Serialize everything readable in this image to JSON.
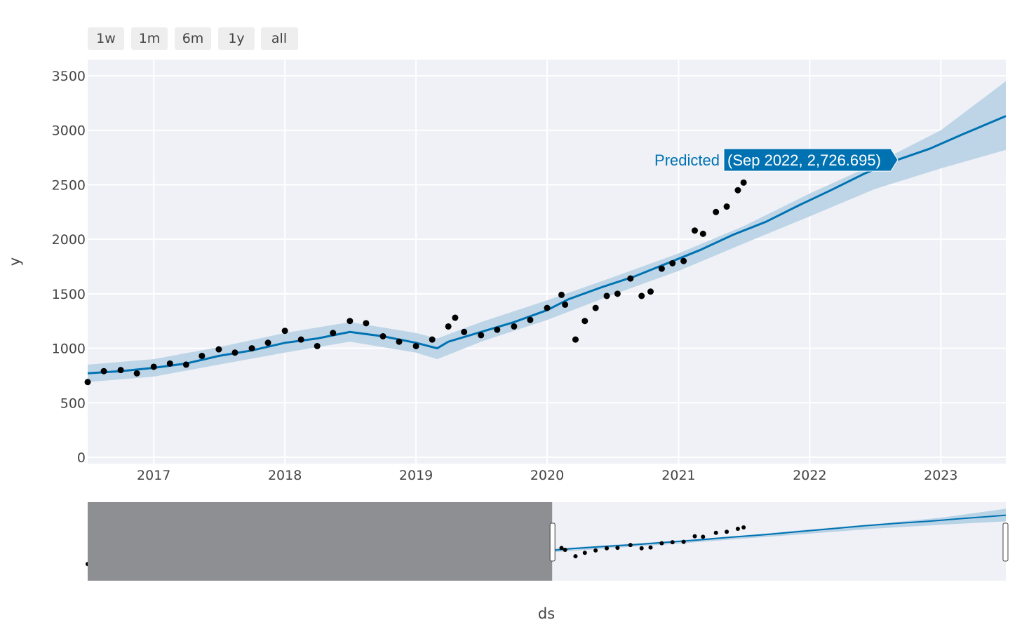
{
  "range_selector": {
    "buttons": [
      {
        "label": "1w"
      },
      {
        "label": "1m"
      },
      {
        "label": "6m"
      },
      {
        "label": "1y"
      },
      {
        "label": "all"
      }
    ]
  },
  "hover": {
    "series_label": "Predicted",
    "value_label": "(Sep 2022, 2,726.695)"
  },
  "colors": {
    "plot_bg": "#eff1f6",
    "grid": "#ffffff",
    "forecast_line": "#0072b2",
    "uncertainty_band": "#b9d3e6",
    "observed_points": "#000000",
    "rangeslider_mask": "#8e8f92",
    "tooltip_bg": "#0072b2"
  },
  "chart_data": {
    "type": "line",
    "xlabel": "ds",
    "ylabel": "y",
    "x_tick_labels": [
      "2017",
      "2018",
      "2019",
      "2020",
      "2021",
      "2022",
      "2023"
    ],
    "y_tick_labels": [
      "0",
      "500",
      "1000",
      "1500",
      "2000",
      "2500",
      "3000",
      "3500"
    ],
    "xlim": [
      "2016-07-01",
      "2023-07-01"
    ],
    "ylim": [
      0,
      3500
    ],
    "grid": true,
    "range_slider": {
      "visible": true,
      "selected_start": "2016-07-01",
      "selected_end": "2023-07-01",
      "masked_before": "2020-01-15"
    },
    "series": [
      {
        "name": "Predicted",
        "kind": "line",
        "x": [
          "2016-07-01",
          "2016-10-01",
          "2017-01-01",
          "2017-04-01",
          "2017-07-01",
          "2017-10-01",
          "2018-01-01",
          "2018-04-01",
          "2018-07-01",
          "2018-10-01",
          "2019-01-01",
          "2019-03-01",
          "2019-04-01",
          "2019-07-01",
          "2019-10-01",
          "2020-01-01",
          "2020-03-01",
          "2020-06-01",
          "2020-09-01",
          "2020-12-01",
          "2021-03-01",
          "2021-06-01",
          "2021-09-01",
          "2021-12-01",
          "2022-03-01",
          "2022-06-01",
          "2022-09-01",
          "2022-12-01",
          "2023-03-01",
          "2023-07-01"
        ],
        "y": [
          770,
          790,
          820,
          860,
          930,
          980,
          1050,
          1090,
          1150,
          1110,
          1050,
          1000,
          1060,
          1150,
          1240,
          1350,
          1450,
          1560,
          1660,
          1780,
          1900,
          2040,
          2160,
          2310,
          2450,
          2600,
          2726.695,
          2830,
          2960,
          3130
        ]
      },
      {
        "name": "Uncertainty interval",
        "kind": "band",
        "x": [
          "2016-07-01",
          "2017-01-01",
          "2017-07-01",
          "2018-01-01",
          "2018-07-01",
          "2019-01-01",
          "2019-03-01",
          "2019-07-01",
          "2020-01-01",
          "2020-07-01",
          "2021-01-01",
          "2021-07-01",
          "2022-01-01",
          "2022-07-01",
          "2023-01-01",
          "2023-07-01"
        ],
        "lower": [
          690,
          740,
          850,
          960,
          1060,
          960,
          900,
          1060,
          1260,
          1490,
          1710,
          1960,
          2210,
          2460,
          2650,
          2820
        ],
        "upper": [
          850,
          900,
          1010,
          1140,
          1240,
          1140,
          1090,
          1240,
          1440,
          1650,
          1870,
          2120,
          2420,
          2690,
          3000,
          3450
        ]
      },
      {
        "name": "Actual",
        "kind": "scatter",
        "x": [
          "2016-07-01",
          "2016-08-15",
          "2016-10-01",
          "2016-11-15",
          "2017-01-01",
          "2017-02-15",
          "2017-04-01",
          "2017-05-15",
          "2017-07-01",
          "2017-08-15",
          "2017-10-01",
          "2017-11-15",
          "2018-01-01",
          "2018-02-15",
          "2018-04-01",
          "2018-05-15",
          "2018-07-01",
          "2018-08-15",
          "2018-10-01",
          "2018-11-15",
          "2019-01-01",
          "2019-02-15",
          "2019-04-01",
          "2019-04-20",
          "2019-05-15",
          "2019-07-01",
          "2019-08-15",
          "2019-10-01",
          "2019-11-15",
          "2020-01-01",
          "2020-02-10",
          "2020-02-20",
          "2020-03-20",
          "2020-04-15",
          "2020-05-15",
          "2020-06-15",
          "2020-07-15",
          "2020-08-20",
          "2020-09-20",
          "2020-10-15",
          "2020-11-15",
          "2020-12-15",
          "2021-01-15",
          "2021-02-15",
          "2021-03-10",
          "2021-04-15",
          "2021-05-15",
          "2021-06-15",
          "2021-07-01"
        ],
        "y": [
          690,
          790,
          800,
          770,
          830,
          860,
          850,
          930,
          990,
          960,
          1000,
          1050,
          1160,
          1080,
          1020,
          1140,
          1250,
          1230,
          1110,
          1060,
          1020,
          1080,
          1200,
          1280,
          1150,
          1120,
          1170,
          1200,
          1260,
          1370,
          1490,
          1400,
          1080,
          1250,
          1370,
          1480,
          1500,
          1640,
          1480,
          1520,
          1730,
          1780,
          1800,
          2080,
          2050,
          2250,
          2300,
          2450,
          2520
        ]
      }
    ]
  }
}
